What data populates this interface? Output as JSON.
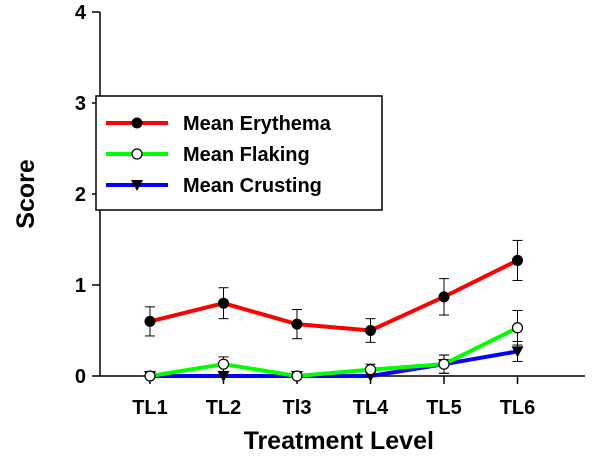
{
  "chart_data": {
    "type": "line",
    "title": "",
    "xlabel": "Treatment Level",
    "ylabel": "Score",
    "categories": [
      "TL1",
      "TL2",
      "Tl3",
      "TL4",
      "TL5",
      "TL6"
    ],
    "ylim": [
      0,
      4
    ],
    "yticks": [
      "0",
      "1",
      "2",
      "3",
      "4"
    ],
    "grid": false,
    "legend_position": "upper-left",
    "series": [
      {
        "name": "Mean Erythema",
        "color": "#ff0000",
        "marker": "filled-circle",
        "values": [
          0.6,
          0.8,
          0.57,
          0.5,
          0.87,
          1.27
        ],
        "errors": [
          0.16,
          0.17,
          0.16,
          0.13,
          0.2,
          0.22
        ]
      },
      {
        "name": "Mean Flaking",
        "color": "#00ff00",
        "marker": "open-circle",
        "values": [
          0.0,
          0.13,
          0.0,
          0.07,
          0.13,
          0.53
        ],
        "errors": [
          0.0,
          0.08,
          0.0,
          0.06,
          0.1,
          0.19
        ]
      },
      {
        "name": "Mean Crusting",
        "color": "#0000ff",
        "marker": "filled-triangle-down",
        "values": [
          0.0,
          0.0,
          0.0,
          0.0,
          0.13,
          0.27
        ],
        "errors": [
          0.0,
          0.0,
          0.0,
          0.0,
          0.1,
          0.11
        ]
      }
    ]
  }
}
